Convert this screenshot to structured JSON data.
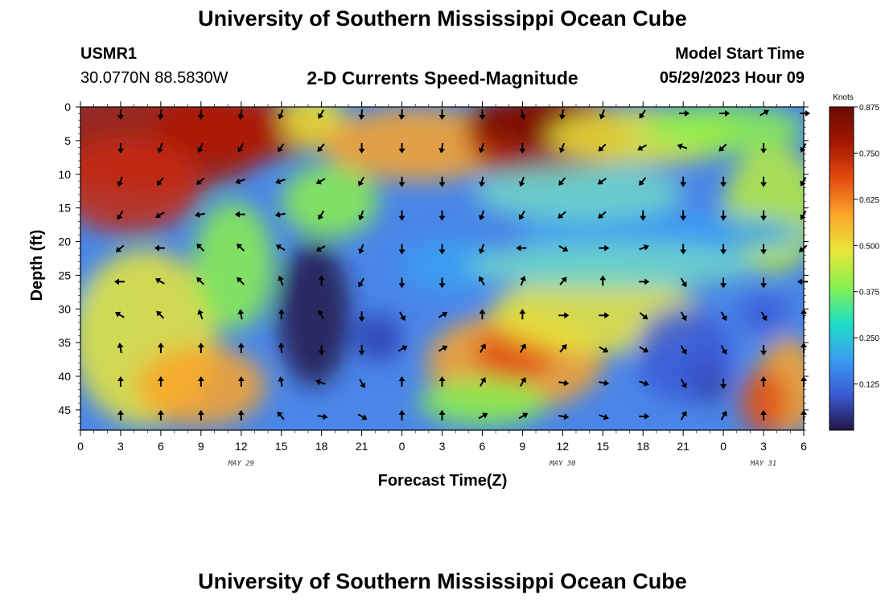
{
  "header": {
    "title": "University of Southern Mississippi Ocean Cube",
    "station_id": "USMR1",
    "station_coords": "30.0770N  88.5830W",
    "chart_title": "2-D Currents Speed-Magnitude",
    "start_label": "Model Start Time",
    "start_value": "05/29/2023 Hour 09"
  },
  "footer": {
    "title": "University of Southern Mississippi Ocean Cube"
  },
  "chart_data": {
    "type": "heatmap",
    "title": "2-D Currents Speed-Magnitude",
    "xlabel": "Forecast Time(Z)",
    "ylabel": "Depth (ft)",
    "x_tick_labels": [
      "0",
      "3",
      "6",
      "9",
      "12",
      "15",
      "18",
      "21",
      "0",
      "3",
      "6",
      "9",
      "12",
      "15",
      "18",
      "21",
      "0",
      "3",
      "6"
    ],
    "x_hours": [
      0,
      54
    ],
    "date_labels": [
      {
        "text": "MAY 29",
        "hour": 12
      },
      {
        "text": "MAY 30",
        "hour": 36
      },
      {
        "text": "MAY 31",
        "hour": 51
      }
    ],
    "y_ticks": [
      0,
      5,
      10,
      15,
      20,
      25,
      30,
      35,
      40,
      45
    ],
    "ylim": [
      0,
      48
    ],
    "colorbar": {
      "label": "Knots",
      "ticks": [
        "0.875",
        "0.750",
        "0.625",
        "0.500",
        "0.375",
        "0.250",
        "0.125"
      ],
      "tick_values": [
        0.875,
        0.75,
        0.625,
        0.5,
        0.375,
        0.25,
        0.125
      ],
      "range": [
        0.0,
        0.875
      ],
      "colors": [
        "#23164a",
        "#3b5bd6",
        "#38a0f2",
        "#1ee0c2",
        "#8af04e",
        "#e9e63a",
        "#fba529",
        "#e34d10",
        "#a51603",
        "#6b0a00"
      ]
    },
    "vector_times": [
      3,
      6,
      9,
      12,
      15,
      18,
      21,
      24,
      27,
      30,
      33,
      36,
      39,
      42,
      45,
      48,
      51,
      54
    ],
    "vector_depths": [
      0,
      5,
      10,
      15,
      20,
      25,
      30,
      35,
      40,
      45
    ],
    "vector_angles_deg": [
      [
        270,
        265,
        265,
        260,
        250,
        240,
        265,
        265,
        270,
        270,
        280,
        260,
        250,
        235,
        0,
        0,
        30,
        0
      ],
      [
        270,
        250,
        245,
        240,
        235,
        230,
        270,
        270,
        260,
        250,
        270,
        250,
        225,
        210,
        160,
        225,
        270,
        240
      ],
      [
        250,
        230,
        220,
        200,
        200,
        210,
        240,
        270,
        270,
        260,
        250,
        230,
        215,
        230,
        270,
        270,
        270,
        240
      ],
      [
        240,
        210,
        190,
        180,
        190,
        240,
        250,
        270,
        270,
        250,
        240,
        220,
        220,
        270,
        270,
        270,
        270,
        240
      ],
      [
        220,
        180,
        135,
        135,
        150,
        210,
        250,
        270,
        270,
        250,
        180,
        330,
        0,
        20,
        270,
        270,
        270,
        220
      ],
      [
        180,
        150,
        135,
        135,
        110,
        90,
        240,
        270,
        270,
        120,
        70,
        50,
        90,
        0,
        300,
        270,
        270,
        180
      ],
      [
        150,
        135,
        110,
        100,
        90,
        120,
        270,
        300,
        30,
        90,
        90,
        0,
        0,
        320,
        300,
        300,
        300,
        90
      ],
      [
        100,
        90,
        90,
        90,
        95,
        270,
        270,
        30,
        30,
        60,
        60,
        50,
        330,
        330,
        300,
        300,
        270,
        90
      ],
      [
        90,
        90,
        90,
        90,
        100,
        160,
        300,
        90,
        90,
        60,
        60,
        350,
        350,
        340,
        300,
        270,
        90,
        90
      ],
      [
        90,
        90,
        90,
        90,
        130,
        350,
        330,
        90,
        90,
        30,
        30,
        350,
        340,
        0,
        60,
        60,
        90,
        90
      ]
    ]
  }
}
